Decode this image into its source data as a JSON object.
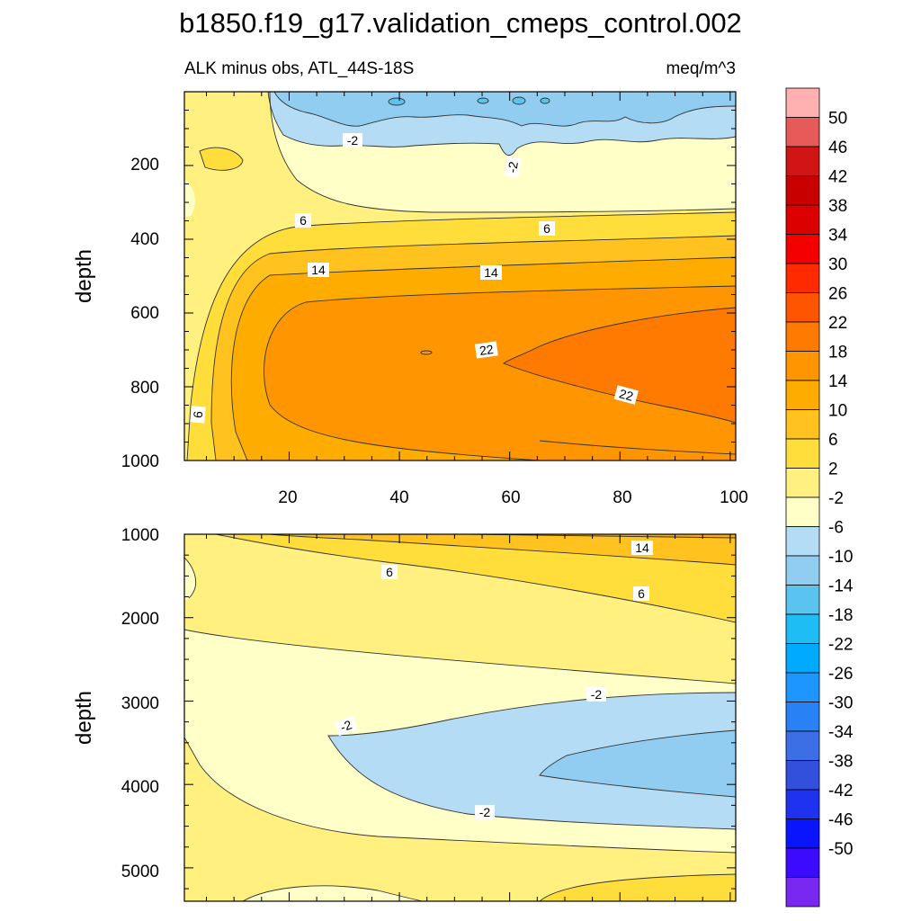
{
  "chart_data": {
    "type": "contour",
    "title": "b1850.f19_g17.validation_cmeps_control.002",
    "subtitle_left": "ALK minus obs, ATL_44S-18S",
    "subtitle_right": "meq/m^3",
    "ylabel": "depth",
    "x_ticks": [
      "20",
      "40",
      "60",
      "80",
      "100"
    ],
    "xlim": [
      1,
      101
    ],
    "panels": [
      {
        "name": "upper",
        "ylim": [
          0,
          1000
        ],
        "y_ticks": [
          "200",
          "400",
          "600",
          "800",
          "1000"
        ],
        "contour_labels": [
          "-2",
          "-2",
          "6",
          "6",
          "14",
          "14",
          "22",
          "22",
          "6"
        ]
      },
      {
        "name": "lower",
        "ylim": [
          1000,
          5400
        ],
        "y_ticks": [
          "1000",
          "2000",
          "3000",
          "4000",
          "5000"
        ],
        "contour_labels": [
          "14",
          "6",
          "6",
          "-2",
          "-2",
          "-2"
        ]
      }
    ],
    "colorbar": {
      "labels": [
        "50",
        "46",
        "42",
        "38",
        "34",
        "30",
        "26",
        "22",
        "18",
        "14",
        "10",
        "6",
        "2",
        "-2",
        "-6",
        "-10",
        "-14",
        "-18",
        "-22",
        "-26",
        "-30",
        "-34",
        "-38",
        "-42",
        "-46",
        "-50"
      ],
      "colors": [
        "#FFB0B0",
        "#E65A5A",
        "#D11515",
        "#C80000",
        "#DC0000",
        "#F50000",
        "#FF2A00",
        "#FF5500",
        "#FF7A00",
        "#FF9500",
        "#FFAC00",
        "#FFC21E",
        "#FFDE3C",
        "#FFF080",
        "#FFFFC8",
        "#B4DCF5",
        "#91CDF0",
        "#5AC3F0",
        "#1EBEF5",
        "#00AAFF",
        "#1E96FF",
        "#2882F5",
        "#3C6EE6",
        "#3250DC",
        "#1E32F0",
        "#0A14FF",
        "#3C0AFF",
        "#7828F0"
      ]
    }
  }
}
